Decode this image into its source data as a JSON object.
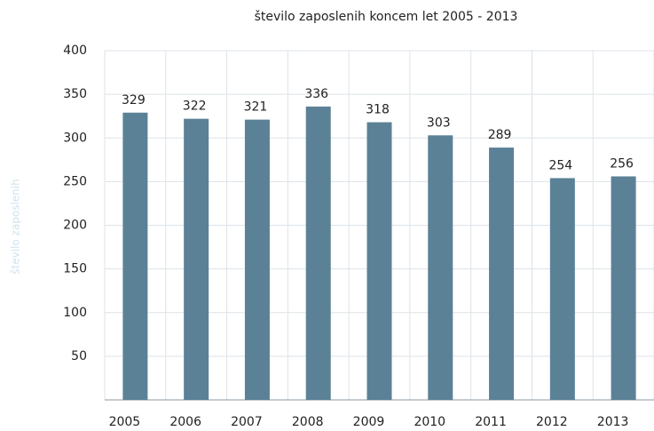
{
  "chart_data": {
    "type": "bar",
    "title": "število zaposlenih koncem let 2005 - 2013",
    "y_label": "število zaposlenih",
    "categories": [
      "2005",
      "2006",
      "2007",
      "2008",
      "2009",
      "2010",
      "2011",
      "2012",
      "2013"
    ],
    "values": [
      329,
      322,
      321,
      336,
      318,
      303,
      289,
      254,
      256
    ],
    "color": "#5b8196",
    "ylim": [
      0,
      400
    ],
    "yticks": [
      50,
      100,
      150,
      200,
      250,
      300,
      350,
      400
    ],
    "grid": true
  }
}
